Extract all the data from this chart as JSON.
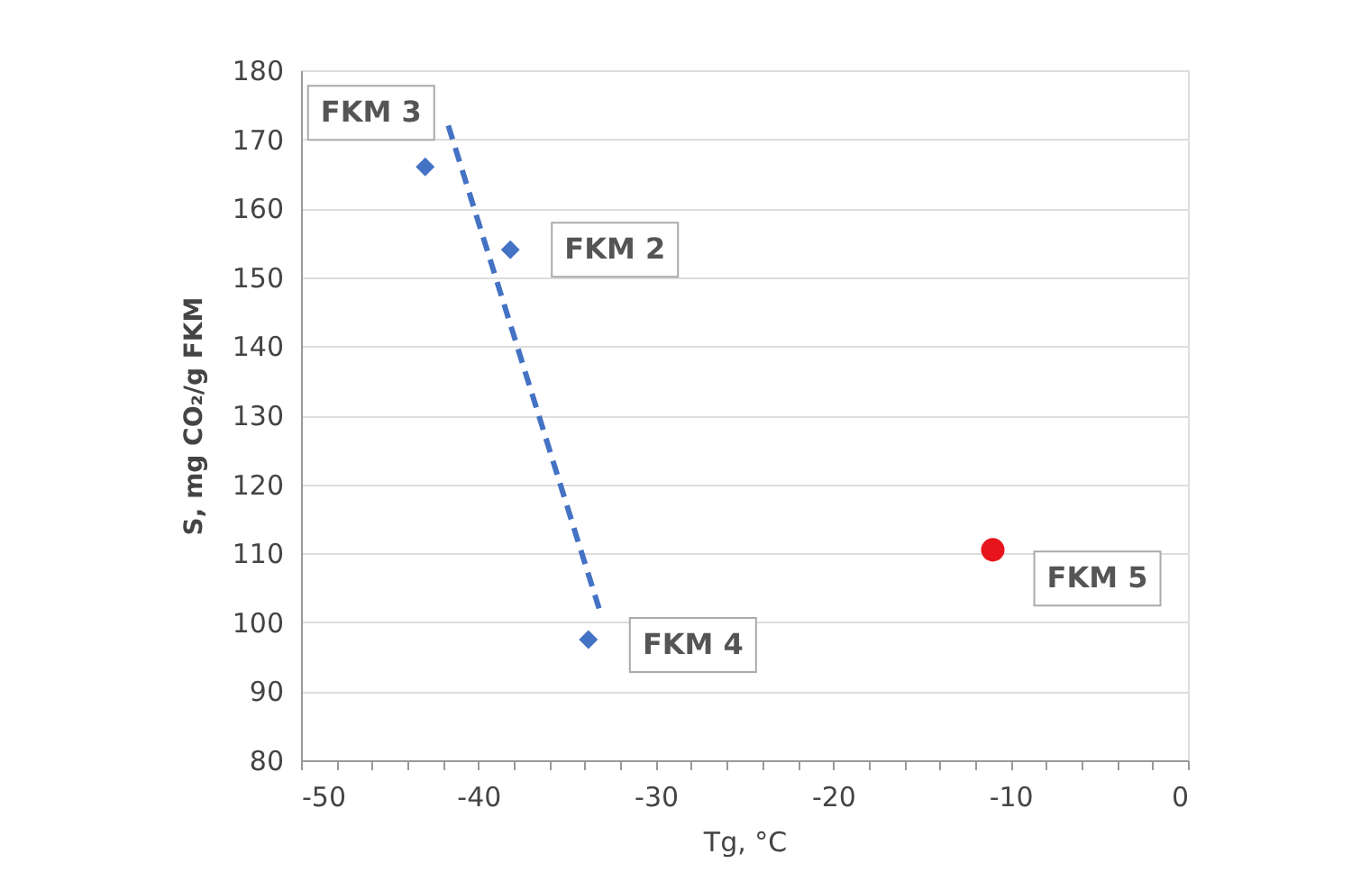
{
  "chart_data": {
    "type": "scatter",
    "xlabel": "Tg, °C",
    "ylabel": "S, mg CO₂/g FKM",
    "series": [
      {
        "marker": "diamond",
        "color": "#4472c4",
        "x": [
          -43,
          -38.2,
          -33.8
        ],
        "values": [
          166,
          154,
          97.5
        ]
      },
      {
        "marker": "circle",
        "color": "#e8141c",
        "x": [
          -11
        ],
        "values": [
          110.5
        ]
      },
      {
        "type": "line",
        "line_style": "dashed",
        "color": "#4472c4",
        "x": [
          -41.7,
          -33.2
        ],
        "values": [
          172,
          102
        ]
      }
    ],
    "annotations": [
      {
        "text": "FKM 3",
        "x": -43,
        "y": 166
      },
      {
        "text": "FKM 2",
        "x": -38.2,
        "y": 154
      },
      {
        "text": "FKM 4",
        "x": -33.8,
        "y": 97.5
      },
      {
        "text": "FKM 5",
        "x": -11,
        "y": 110.5
      }
    ],
    "xlim": [
      -50,
      0
    ],
    "xticks": [
      -50,
      {
        "value": -48,
        "label": null
      },
      {
        "value": -46,
        "label": null
      },
      {
        "value": -44,
        "label": null
      },
      {
        "value": -42,
        "label": null
      },
      -40,
      {
        "value": -38,
        "label": null
      },
      {
        "value": -36,
        "label": null
      },
      {
        "value": -34,
        "label": null
      },
      {
        "value": -32,
        "label": null
      },
      -30,
      {
        "value": -28,
        "label": null
      },
      {
        "value": -26,
        "label": null
      },
      {
        "value": -24,
        "label": null
      },
      {
        "value": -22,
        "label": null
      },
      -20,
      {
        "value": -18,
        "label": null
      },
      {
        "value": -16,
        "label": null
      },
      {
        "value": -14,
        "label": null
      },
      {
        "value": -12,
        "label": null
      },
      -10,
      {
        "value": -8,
        "label": null
      },
      {
        "value": -6,
        "label": null
      },
      {
        "value": -4,
        "label": null
      },
      {
        "value": -2,
        "label": null
      },
      0
    ],
    "ylim": [
      80,
      180
    ],
    "yticks": [
      80,
      90,
      100,
      110,
      120,
      130,
      140,
      150,
      160,
      170,
      180
    ],
    "grid": "y"
  }
}
